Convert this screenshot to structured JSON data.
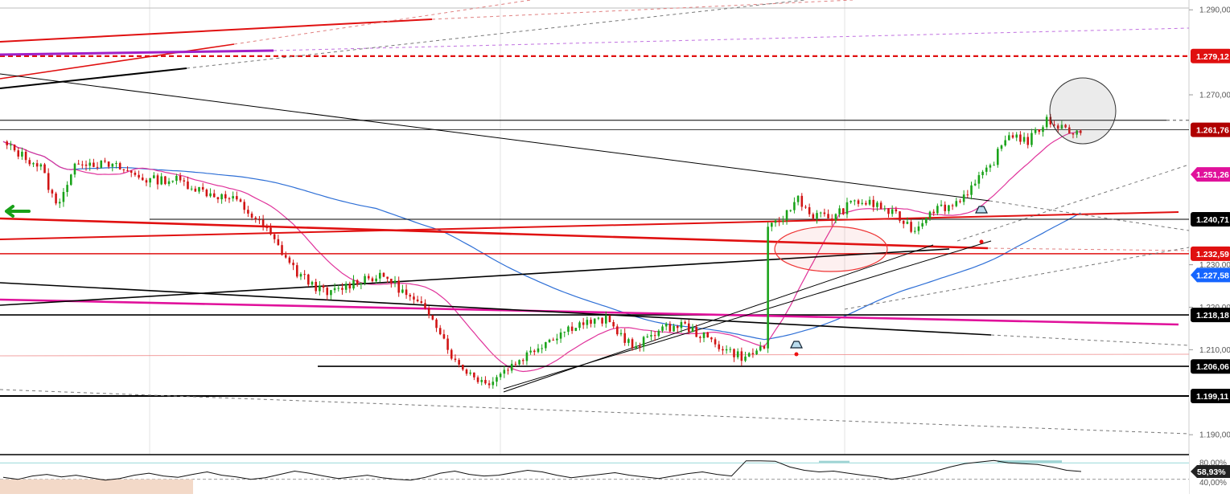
{
  "chart_data": {
    "type": "candlestick",
    "price_axis": {
      "range": [
        1.1855,
        1.2908
      ],
      "ticks": [
        "1.290,00",
        "1.270,00",
        "1.230,00",
        "1.220,00",
        "1.210,00",
        "1.190,00"
      ]
    },
    "time_axis": {
      "bar_count": 300,
      "labels": [
        "",
        "",
        ""
      ]
    },
    "price_tags": [
      {
        "label": "1.279,12",
        "value": 1.27912,
        "color": "#e01010"
      },
      {
        "label": "1.261,76",
        "value": 1.26176,
        "color": "#b00000"
      },
      {
        "label": "1.251,26",
        "value": 1.25126,
        "color": "#e0119b"
      },
      {
        "label": "1.240,71",
        "value": 1.24071,
        "color": "#000000"
      },
      {
        "label": "1.232,59",
        "value": 1.23259,
        "color": "#e01010"
      },
      {
        "label": "1.227,58",
        "value": 1.22758,
        "color": "#1565ff"
      },
      {
        "label": "1.218,18",
        "value": 1.21818,
        "color": "#000000"
      },
      {
        "label": "1.206,06",
        "value": 1.20606,
        "color": "#000000"
      },
      {
        "label": "1.199,11",
        "value": 1.19911,
        "color": "#000000"
      }
    ],
    "ohlc_anchors": [
      {
        "bar": 0,
        "close": 1.2585
      },
      {
        "bar": 10,
        "close": 1.253
      },
      {
        "bar": 14,
        "close": 1.244
      },
      {
        "bar": 20,
        "close": 1.2545
      },
      {
        "bar": 30,
        "close": 1.253
      },
      {
        "bar": 38,
        "close": 1.25
      },
      {
        "bar": 46,
        "close": 1.25
      },
      {
        "bar": 54,
        "close": 1.247
      },
      {
        "bar": 62,
        "close": 1.245
      },
      {
        "bar": 70,
        "close": 1.238
      },
      {
        "bar": 78,
        "close": 1.228
      },
      {
        "bar": 86,
        "close": 1.223
      },
      {
        "bar": 96,
        "close": 1.227
      },
      {
        "bar": 102,
        "close": 1.227
      },
      {
        "bar": 108,
        "close": 1.222
      },
      {
        "bar": 114,
        "close": 1.218
      },
      {
        "bar": 120,
        "close": 1.207
      },
      {
        "bar": 128,
        "close": 1.202
      },
      {
        "bar": 136,
        "close": 1.207
      },
      {
        "bar": 144,
        "close": 1.212
      },
      {
        "bar": 152,
        "close": 1.216
      },
      {
        "bar": 160,
        "close": 1.217
      },
      {
        "bar": 168,
        "close": 1.21
      },
      {
        "bar": 172,
        "close": 1.214
      },
      {
        "bar": 180,
        "close": 1.216
      },
      {
        "bar": 186,
        "close": 1.213
      },
      {
        "bar": 192,
        "close": 1.21
      },
      {
        "bar": 197,
        "close": 1.208
      },
      {
        "bar": 202,
        "close": 1.211
      },
      {
        "bar": 203,
        "close": 1.238
      },
      {
        "bar": 208,
        "close": 1.242
      },
      {
        "bar": 211,
        "close": 1.246
      },
      {
        "bar": 214,
        "close": 1.242
      },
      {
        "bar": 220,
        "close": 1.241
      },
      {
        "bar": 226,
        "close": 1.245
      },
      {
        "bar": 232,
        "close": 1.244
      },
      {
        "bar": 238,
        "close": 1.241
      },
      {
        "bar": 242,
        "close": 1.238
      },
      {
        "bar": 246,
        "close": 1.243
      },
      {
        "bar": 252,
        "close": 1.244
      },
      {
        "bar": 258,
        "close": 1.249
      },
      {
        "bar": 262,
        "close": 1.253
      },
      {
        "bar": 267,
        "close": 1.261
      },
      {
        "bar": 272,
        "close": 1.259
      },
      {
        "bar": 277,
        "close": 1.264
      },
      {
        "bar": 282,
        "close": 1.262
      },
      {
        "bar": 286,
        "close": 1.261
      }
    ],
    "support_resistance_levels": [
      1.2791,
      1.264,
      1.2618,
      1.2407,
      1.2326,
      1.2182,
      1.2061,
      1.1991
    ],
    "oscillator": {
      "current_label": "58,93%",
      "levels": [
        "80,00%",
        "40,00%"
      ],
      "current": 58.93,
      "values": [
        45,
        40,
        48,
        52,
        46,
        50,
        44,
        38,
        42,
        50,
        55,
        48,
        45,
        52,
        58,
        50,
        46,
        40,
        44,
        52,
        60,
        55,
        48,
        42,
        46,
        50,
        44,
        40,
        38,
        45,
        55,
        60,
        52,
        48,
        50,
        56,
        62,
        58,
        50,
        44,
        48,
        52,
        56,
        50,
        46,
        42,
        48,
        54,
        58,
        52,
        48,
        85,
        85,
        84,
        70,
        62,
        58,
        60,
        55,
        50,
        46,
        40,
        45,
        52,
        60,
        70,
        78,
        82,
        86,
        80,
        78,
        76,
        70,
        62,
        58.93
      ]
    }
  }
}
